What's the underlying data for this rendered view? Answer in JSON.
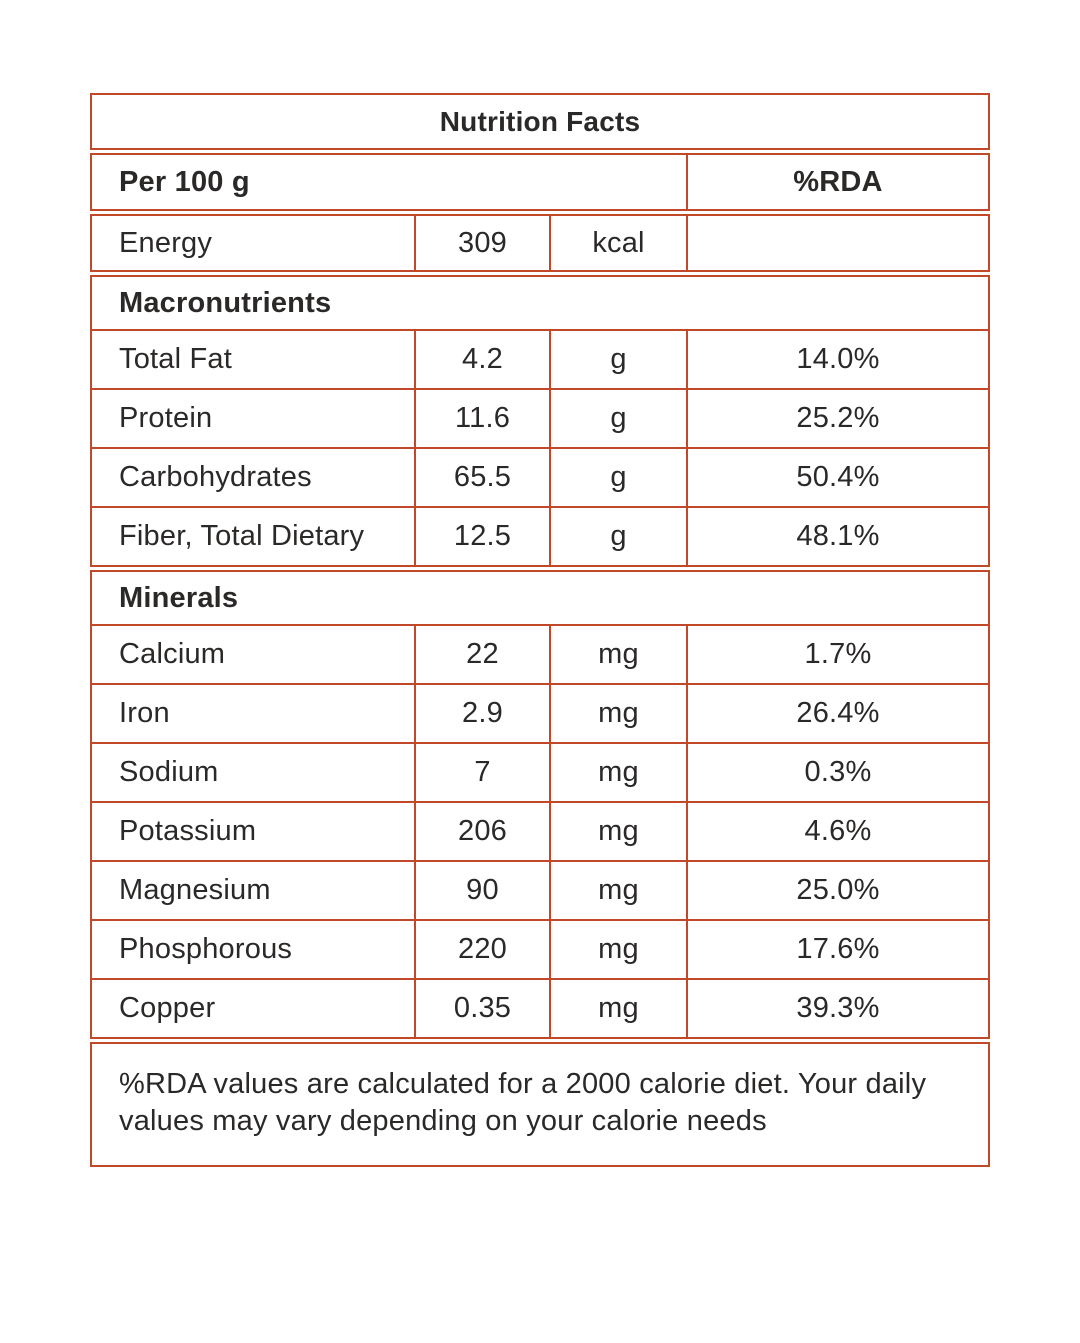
{
  "colors": {
    "border": "#c2482a",
    "text": "#2b2928",
    "background": "#ffffff"
  },
  "table": {
    "title": "Nutrition Facts",
    "serving": {
      "label": "Per 100 g",
      "rda_label": "%RDA"
    },
    "energy": {
      "label": "Energy",
      "value": "309",
      "unit": "kcal",
      "rda": ""
    },
    "sections": [
      {
        "header": "Macronutrients",
        "rows": [
          {
            "label": "Total Fat",
            "value": "4.2",
            "unit": "g",
            "rda": "14.0%"
          },
          {
            "label": "Protein",
            "value": "11.6",
            "unit": "g",
            "rda": "25.2%"
          },
          {
            "label": "Carbohydrates",
            "value": "65.5",
            "unit": "g",
            "rda": "50.4%"
          },
          {
            "label": "Fiber, Total Dietary",
            "value": "12.5",
            "unit": "g",
            "rda": "48.1%"
          }
        ]
      },
      {
        "header": "Minerals",
        "rows": [
          {
            "label": "Calcium",
            "value": "22",
            "unit": "mg",
            "rda": "1.7%"
          },
          {
            "label": "Iron",
            "value": "2.9",
            "unit": "mg",
            "rda": "26.4%"
          },
          {
            "label": "Sodium",
            "value": "7",
            "unit": "mg",
            "rda": "0.3%"
          },
          {
            "label": "Potassium",
            "value": "206",
            "unit": "mg",
            "rda": "4.6%"
          },
          {
            "label": "Magnesium",
            "value": "90",
            "unit": "mg",
            "rda": "25.0%"
          },
          {
            "label": "Phosphorous",
            "value": "220",
            "unit": "mg",
            "rda": "17.6%"
          },
          {
            "label": "Copper",
            "value": "0.35",
            "unit": "mg",
            "rda": "39.3%"
          }
        ]
      }
    ],
    "footnote": "%RDA values are calculated for a 2000 calorie diet. Your daily values may vary depending on your calorie needs"
  }
}
